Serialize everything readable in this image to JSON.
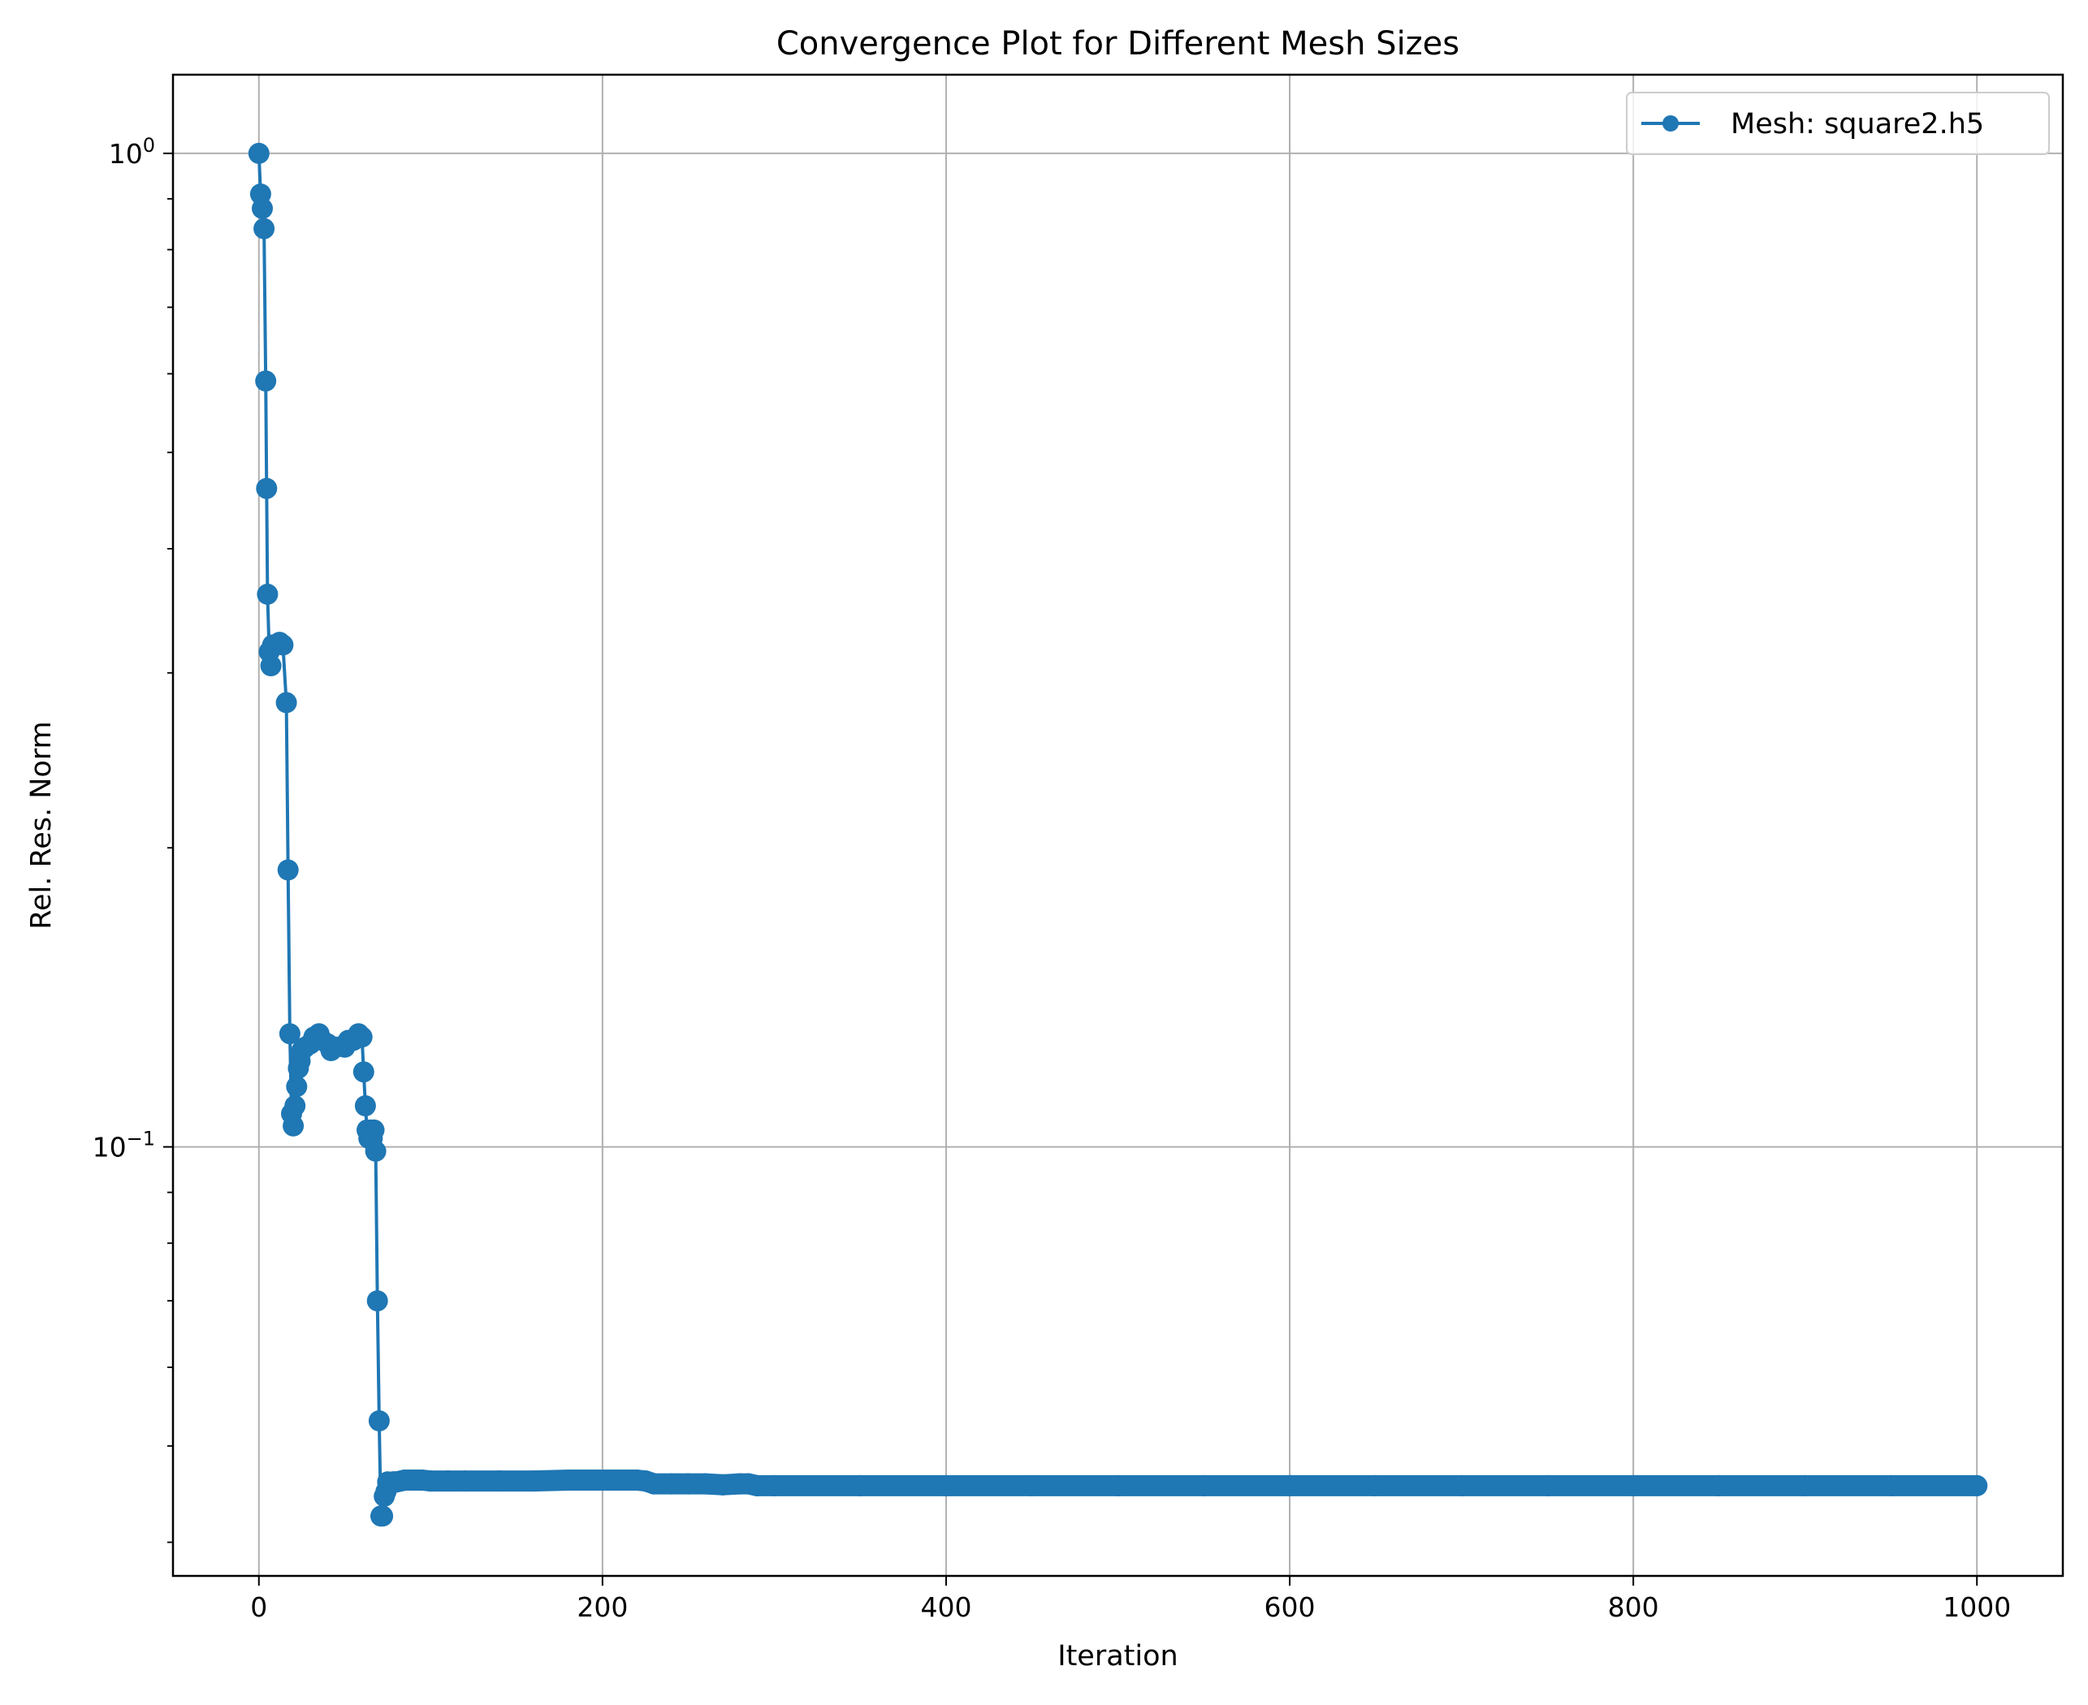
{
  "chart_data": {
    "type": "line",
    "title": "Convergence Plot for Different Mesh Sizes",
    "xlabel": "Iteration",
    "ylabel": "Rel. Res. Norm",
    "xlim": [
      -50,
      1050
    ],
    "ylim": [
      0.037,
      1.2
    ],
    "yscale": "log",
    "x_ticks": [
      0,
      200,
      400,
      600,
      800,
      1000
    ],
    "x_tick_labels": [
      "0",
      "200",
      "400",
      "600",
      "800",
      "1000"
    ],
    "y_major_ticks": [
      0.1,
      1.0
    ],
    "y_major_tick_labels": [
      {
        "base": "10",
        "exp": "−1"
      },
      {
        "base": "10",
        "exp": "0"
      }
    ],
    "y_minor_ticks": [
      0.04,
      0.05,
      0.06,
      0.07,
      0.08,
      0.09,
      0.2,
      0.3,
      0.4,
      0.5,
      0.6,
      0.7,
      0.8,
      0.9
    ],
    "grid": true,
    "legend_position": "top-right",
    "series": [
      {
        "name": "Mesh: square2.h5",
        "color": "#1f77b4",
        "marker": "circle",
        "x": [
          0,
          1,
          2,
          3,
          4,
          4.5,
          5,
          6,
          7,
          8,
          10,
          12,
          14,
          16,
          17,
          18,
          19,
          20,
          21,
          22,
          23,
          24,
          25,
          27,
          30,
          32,
          35,
          37,
          40,
          42,
          45,
          50,
          52,
          55,
          58,
          60,
          61,
          62,
          63,
          64,
          65,
          66,
          67,
          68,
          69,
          70,
          71,
          72,
          73,
          74,
          75,
          76,
          78,
          80,
          85,
          90,
          95,
          100,
          110,
          120,
          140,
          160,
          180,
          200,
          220,
          225,
          230,
          240,
          250,
          260,
          270,
          280,
          285,
          290,
          300,
          350,
          400,
          450,
          500,
          550,
          600,
          650,
          700,
          750,
          800,
          850,
          900,
          950,
          1000
        ],
        "y": [
          1.0,
          0.91,
          0.88,
          0.84,
          0.59,
          0.46,
          0.36,
          0.315,
          0.305,
          0.32,
          0.32,
          0.322,
          0.32,
          0.28,
          0.19,
          0.13,
          0.108,
          0.105,
          0.11,
          0.115,
          0.12,
          0.122,
          0.125,
          0.126,
          0.127,
          0.129,
          0.13,
          0.128,
          0.127,
          0.125,
          0.126,
          0.126,
          0.128,
          0.128,
          0.13,
          0.129,
          0.119,
          0.11,
          0.104,
          0.102,
          0.104,
          0.102,
          0.104,
          0.099,
          0.07,
          0.053,
          0.0425,
          0.0425,
          0.0445,
          0.045,
          0.046,
          0.0458,
          0.046,
          0.046,
          0.0462,
          0.0462,
          0.0462,
          0.0461,
          0.0461,
          0.0461,
          0.0461,
          0.0461,
          0.0462,
          0.0462,
          0.0462,
          0.0461,
          0.0458,
          0.0458,
          0.0458,
          0.0458,
          0.0457,
          0.0458,
          0.0458,
          0.0456,
          0.0456,
          0.0456,
          0.0456,
          0.0456,
          0.0456,
          0.0456,
          0.0456,
          0.0456,
          0.0456,
          0.0456,
          0.0456,
          0.0456,
          0.0456,
          0.0456,
          0.0456
        ]
      }
    ]
  }
}
